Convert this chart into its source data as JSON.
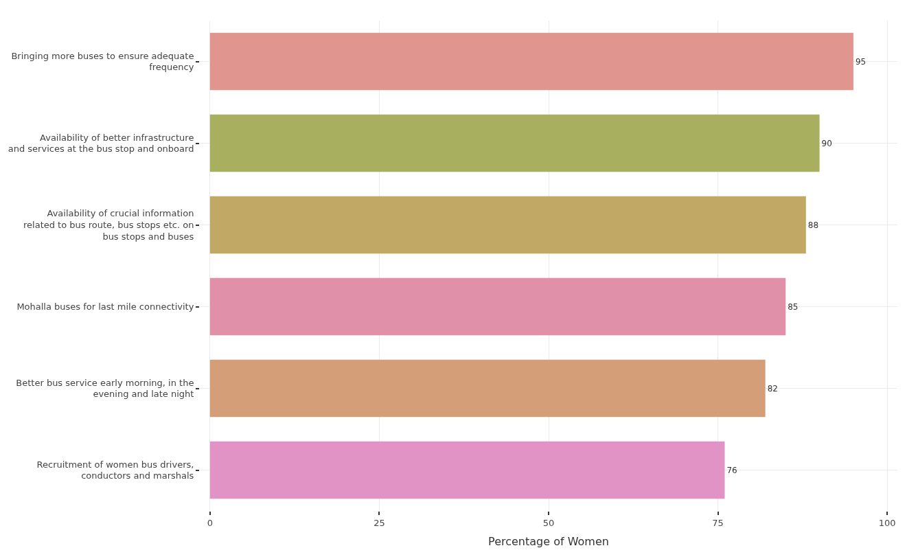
{
  "chart_data": {
    "type": "bar",
    "orientation": "horizontal",
    "xlabel": "Percentage of Women",
    "categories": [
      "Bringing more buses to ensure adequate\nfrequency",
      "Availability of better infrastructure\nand services at the bus stop and onboard",
      "Availability of crucial information\nrelated to bus route, bus stops etc. on\nbus stops and buses",
      "Mohalla buses for last mile connectivity",
      "Better bus service early morning, in the\nevening and late night",
      "Recruitment of women bus drivers,\nconductors and marshals"
    ],
    "values": [
      95,
      90,
      88,
      85,
      82,
      76
    ],
    "colors": [
      "#e0968f",
      "#a8b060",
      "#c2a865",
      "#e090a8",
      "#d49e78",
      "#e093c4"
    ],
    "xlim": [
      -1.5,
      101.5
    ],
    "xticks": [
      0,
      25,
      50,
      75,
      100
    ],
    "grid": true,
    "data_labels": true
  }
}
